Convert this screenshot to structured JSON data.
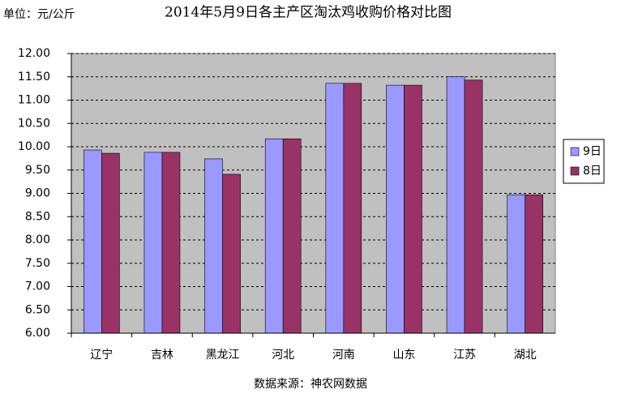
{
  "chart_data": {
    "type": "bar",
    "title": "2014年5月9日各主产区淘汰鸡收购价格对比图",
    "unit_label": "单位：元/公斤",
    "source": "数据来源：神农网数据",
    "categories": [
      "辽宁",
      "吉林",
      "黑龙江",
      "河北",
      "河南",
      "山东",
      "江苏",
      "湖北"
    ],
    "series": [
      {
        "name": "9日",
        "color": "#9999ff",
        "values": [
          9.93,
          9.88,
          9.74,
          10.17,
          11.36,
          11.32,
          11.5,
          8.97
        ]
      },
      {
        "name": "8日",
        "color": "#993366",
        "values": [
          9.86,
          9.88,
          9.41,
          10.17,
          11.36,
          11.32,
          11.43,
          8.97
        ]
      }
    ],
    "ylim": [
      6,
      12
    ],
    "yticks": [
      {
        "value": 6,
        "label": "6.00"
      },
      {
        "value": 6.5,
        "label": "6.50"
      },
      {
        "value": 7,
        "label": "7.00"
      },
      {
        "value": 7.5,
        "label": "7.50"
      },
      {
        "value": 8,
        "label": "8.00"
      },
      {
        "value": 8.5,
        "label": "8.50"
      },
      {
        "value": 9,
        "label": "9.00"
      },
      {
        "value": 9.5,
        "label": "9.50"
      },
      {
        "value": 10,
        "label": "10.00"
      },
      {
        "value": 10.5,
        "label": "10.50"
      },
      {
        "value": 11,
        "label": "11.00"
      },
      {
        "value": 11.5,
        "label": "11.50"
      },
      {
        "value": 12,
        "label": "12.00"
      }
    ],
    "grid": true,
    "legend": "right"
  }
}
